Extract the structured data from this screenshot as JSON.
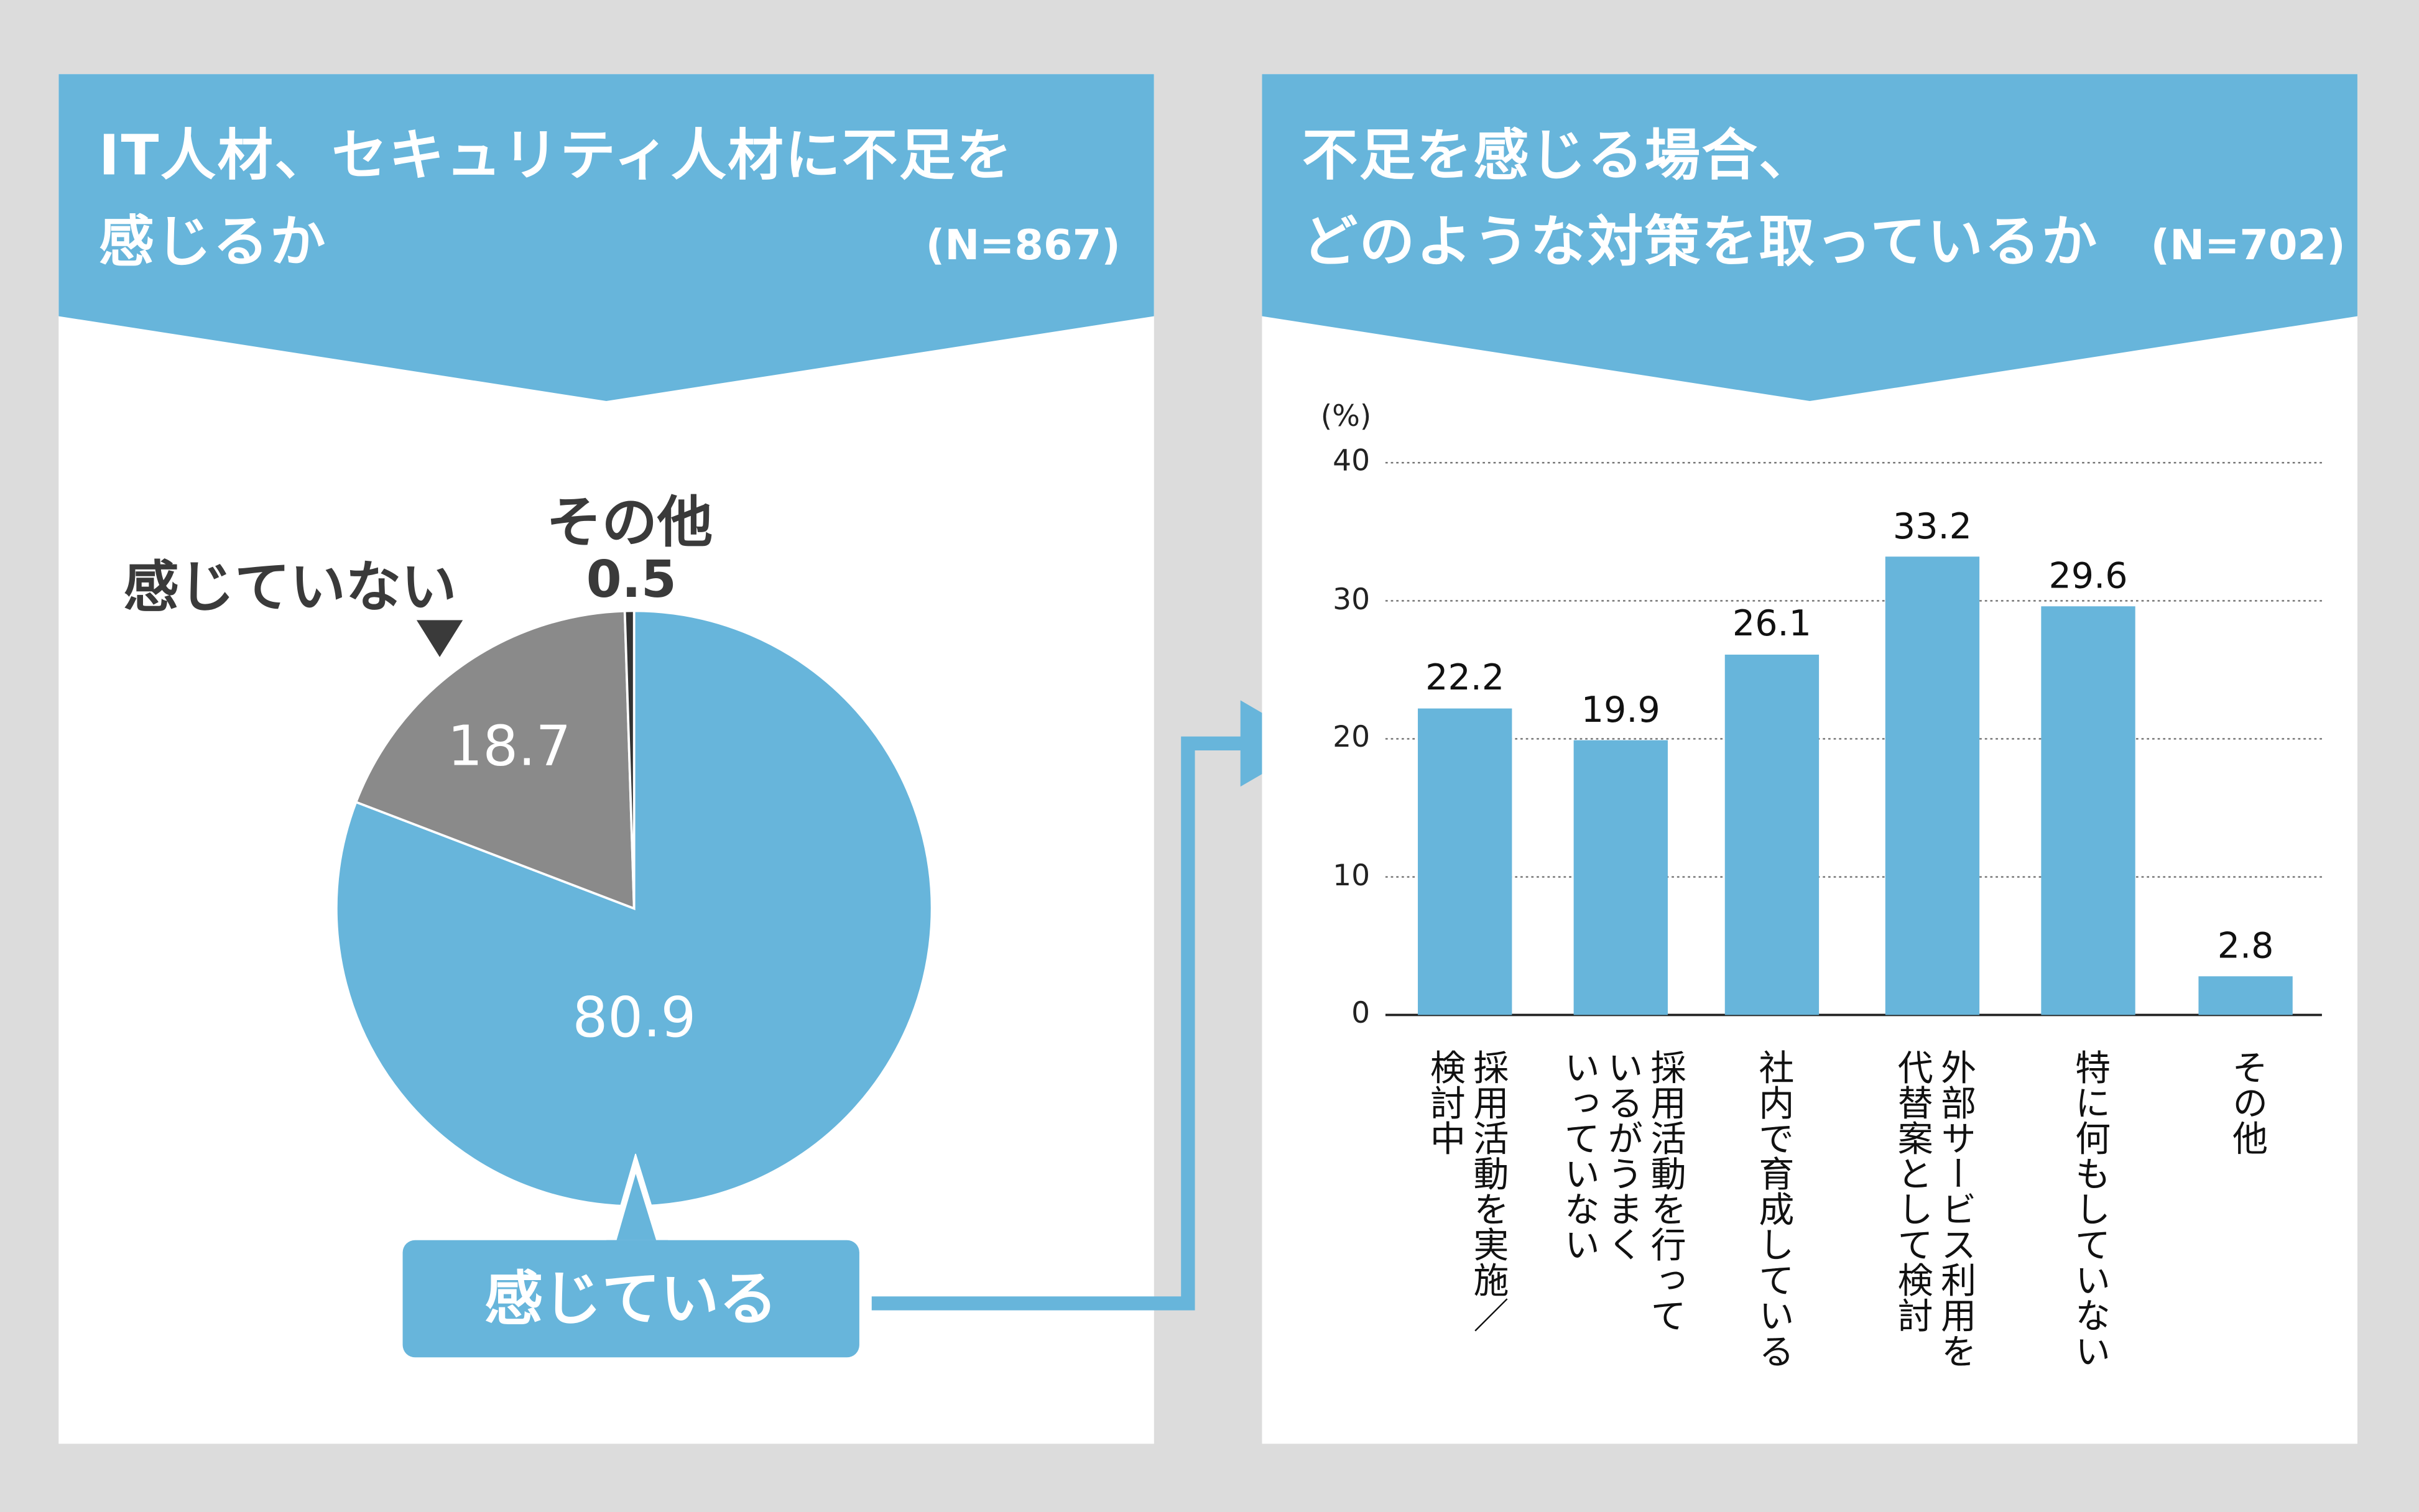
{
  "left_panel": {
    "title_line1": "IT人材、セキュリティ人材に不足を",
    "title_line2": "感じるか",
    "n_label": "(N=867)",
    "callout_label": "感じている"
  },
  "right_panel": {
    "title_line1": "不足を感じる場合、",
    "title_line2": "どのような対策を取っているか",
    "n_label": "(N=702)"
  },
  "colors": {
    "blue": "#67b5db",
    "gray": "#8a8a8a",
    "dark": "#333333",
    "bg": "#dcdcdc"
  },
  "chart_data": [
    {
      "type": "pie",
      "title": "IT人材、セキュリティ人材に不足を感じるか",
      "start": "top, clockwise",
      "slices": [
        {
          "label": "感じている",
          "value": 80.9,
          "value_label": "80.9",
          "color": "#67b5db"
        },
        {
          "label": "感じていない",
          "value": 18.7,
          "value_label": "18.7",
          "color": "#8a8a8a"
        },
        {
          "label": "その他",
          "value": 0.5,
          "value_label": "0.5",
          "color": "#333333"
        }
      ]
    },
    {
      "type": "bar",
      "title": "不足を感じる場合、どのような対策を取っているか",
      "ylabel": "(%)",
      "ylim": [
        0,
        40
      ],
      "yticks": [
        0,
        10,
        20,
        30,
        40
      ],
      "grid": "dotted horizontal",
      "categories": [
        {
          "lines": [
            "採用活動を実施／",
            "検討中"
          ]
        },
        {
          "lines": [
            "採用活動を行って",
            "いるがうまく",
            "いっていない"
          ]
        },
        {
          "lines": [
            "社内で育成している"
          ]
        },
        {
          "lines": [
            "外部サービス利用を",
            "代替案として検討"
          ]
        },
        {
          "lines": [
            "特に何もしていない"
          ]
        },
        {
          "lines": [
            "その他"
          ]
        }
      ],
      "values": [
        22.2,
        19.9,
        26.1,
        33.2,
        29.6,
        2.8
      ],
      "value_labels": [
        "22.2",
        "19.9",
        "26.1",
        "33.2",
        "29.6",
        "2.8"
      ],
      "color": "#67b5db"
    }
  ]
}
